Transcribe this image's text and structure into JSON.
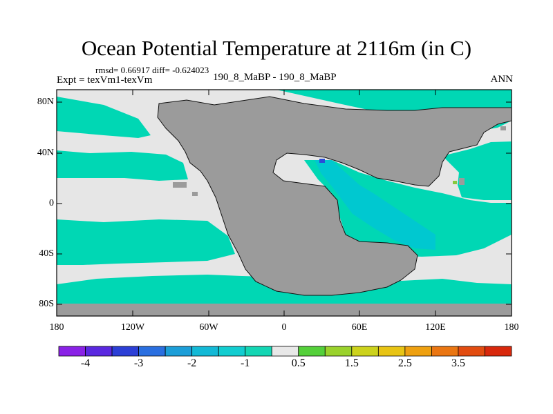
{
  "title": "Ocean Potential Temperature at 2116m (in C)",
  "stats": "rmsd= 0.66917 diff= -0.624023",
  "expt_label": "Expt = texVm1-texVm",
  "case_label": "190_8_MaBP - 190_8_MaBP",
  "season": "ANN",
  "map": {
    "lon_range": [
      -180,
      180
    ],
    "lat_range": [
      -90,
      90
    ],
    "land_color": "#9b9b9b",
    "near_zero_color": "#e6e6e6",
    "minus1_color": "#00d7b4",
    "minus2_color": "#00c8d0",
    "minus3_color": "#2a4cd8",
    "plus1_color": "#86c93e",
    "lat_ticks": [
      "80N",
      "40N",
      "0",
      "40S",
      "80S"
    ],
    "lon_ticks": [
      "180",
      "120W",
      "60W",
      "0",
      "60E",
      "120E",
      "180"
    ]
  },
  "colorbar": {
    "colors": [
      "#8a22e6",
      "#5a28e0",
      "#2c3fd6",
      "#2a6fe0",
      "#1c9ed8",
      "#13b9d6",
      "#12cdd0",
      "#14d6b4",
      "#e8e8e8",
      "#54d03a",
      "#9ad22c",
      "#ccd21c",
      "#e8c414",
      "#eea010",
      "#ea7612",
      "#e24c10",
      "#d8280c"
    ],
    "labels": [
      "-4",
      "-3",
      "-2",
      "-1",
      "0.5",
      "1.5",
      "2.5",
      "3.5"
    ]
  }
}
